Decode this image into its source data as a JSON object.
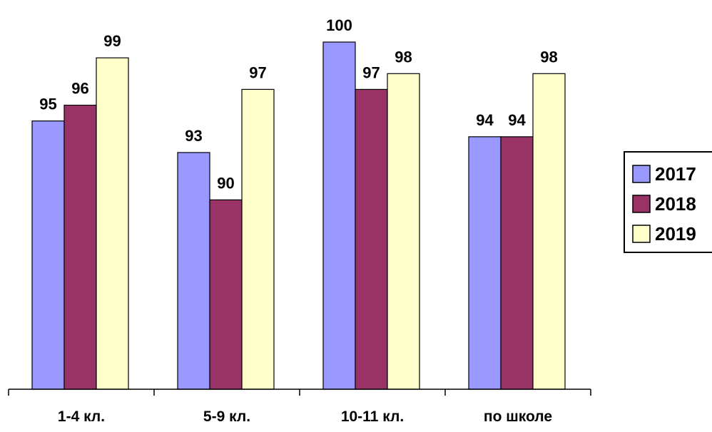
{
  "chart_data": {
    "type": "bar",
    "categories": [
      "1-4 кл.",
      "5-9 кл.",
      "10-11 кл.",
      "по школе"
    ],
    "series": [
      {
        "name": "2017",
        "values": [
          95,
          93,
          100,
          94
        ],
        "color": "#9999FF"
      },
      {
        "name": "2018",
        "values": [
          96,
          90,
          97,
          94
        ],
        "color": "#993366"
      },
      {
        "name": "2019",
        "values": [
          99,
          97,
          98,
          98
        ],
        "color": "#FFFFCC"
      }
    ],
    "data_labels": [
      [
        "95",
        "93",
        "100",
        "94"
      ],
      [
        "96",
        "90",
        "97",
        "94"
      ],
      [
        "99",
        "97",
        "98",
        "98"
      ]
    ],
    "title": "",
    "xlabel": "",
    "ylabel": "",
    "ylim": [
      78,
      100
    ],
    "grid": false,
    "legend_position": "right"
  }
}
